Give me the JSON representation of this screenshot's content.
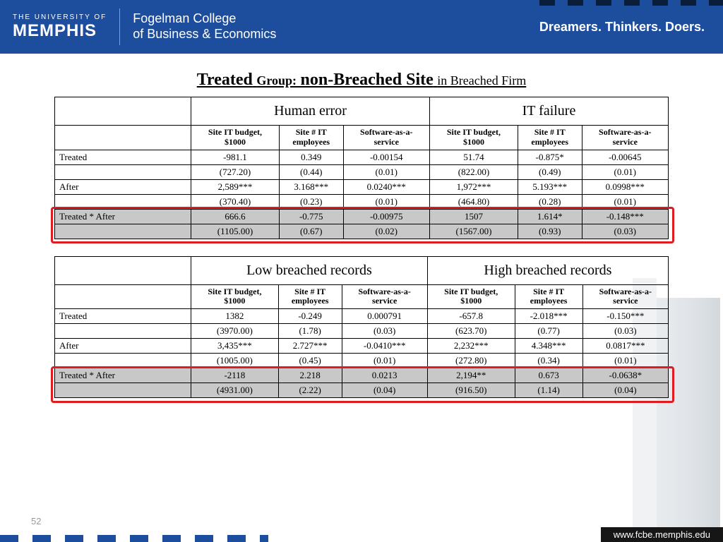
{
  "header": {
    "univ_small": "THE UNIVERSITY OF",
    "univ_big": "MEMPHIS",
    "college_line1": "Fogelman College",
    "college_line2": "of Business & Economics",
    "tagline": "Dreamers. Thinkers. Doers."
  },
  "title": {
    "part1": "Treated",
    "part2": "Group:",
    "part3": "non-Breached Site",
    "part4": "in Breached Firm"
  },
  "table1": {
    "group_a": "Human error",
    "group_b": "IT failure",
    "sub": {
      "c1a": "Site IT budget,",
      "c1b": "$1000",
      "c2a": "Site # IT",
      "c2b": "employees",
      "c3a": "Software-as-a-",
      "c3b": "service"
    },
    "rows": [
      {
        "label": "Treated",
        "a1": "-981.1",
        "a2": "0.349",
        "a3": "-0.00154",
        "b1": "51.74",
        "b2": "-0.875*",
        "b3": "-0.00645"
      },
      {
        "label": "",
        "a1": "(727.20)",
        "a2": "(0.44)",
        "a3": "(0.01)",
        "b1": "(822.00)",
        "b2": "(0.49)",
        "b3": "(0.01)"
      },
      {
        "label": "After",
        "a1": "2,589***",
        "a2": "3.168***",
        "a3": "0.0240***",
        "b1": "1,972***",
        "b2": "5.193***",
        "b3": "0.0998***"
      },
      {
        "label": "",
        "a1": "(370.40)",
        "a2": "(0.23)",
        "a3": "(0.01)",
        "b1": "(464.80)",
        "b2": "(0.28)",
        "b3": "(0.01)"
      },
      {
        "label": "Treated * After",
        "a1": "666.6",
        "a2": "-0.775",
        "a3": "-0.00975",
        "b1": "1507",
        "b2": "1.614*",
        "b3": "-0.148***",
        "hl": true
      },
      {
        "label": "",
        "a1": "(1105.00)",
        "a2": "(0.67)",
        "a3": "(0.02)",
        "b1": "(1567.00)",
        "b2": "(0.93)",
        "b3": "(0.03)",
        "hl": true
      }
    ]
  },
  "table2": {
    "group_a": "Low breached records",
    "group_b": "High breached records",
    "rows": [
      {
        "label": "Treated",
        "a1": "1382",
        "a2": "-0.249",
        "a3": "0.000791",
        "b1": "-657.8",
        "b2": "-2.018***",
        "b3": "-0.150***"
      },
      {
        "label": "",
        "a1": "(3970.00)",
        "a2": "(1.78)",
        "a3": "(0.03)",
        "b1": "(623.70)",
        "b2": "(0.77)",
        "b3": "(0.03)"
      },
      {
        "label": "After",
        "a1": "3,435***",
        "a2": "2.727***",
        "a3": "-0.0410***",
        "b1": "2,232***",
        "b2": "4.348***",
        "b3": "0.0817***"
      },
      {
        "label": "",
        "a1": "(1005.00)",
        "a2": "(0.45)",
        "a3": "(0.01)",
        "b1": "(272.80)",
        "b2": "(0.34)",
        "b3": "(0.01)"
      },
      {
        "label": "Treated * After",
        "a1": "-2118",
        "a2": "2.218",
        "a3": "0.0213",
        "b1": "2,194**",
        "b2": "0.673",
        "b3": "-0.0638*",
        "hl": true
      },
      {
        "label": "",
        "a1": "(4931.00)",
        "a2": "(2.22)",
        "a3": "(0.04)",
        "b1": "(916.50)",
        "b2": "(1.14)",
        "b3": "(0.04)",
        "hl": true
      }
    ]
  },
  "page_number": "52",
  "footer_url": "www.fcbe.memphis.edu",
  "colors": {
    "header_bg": "#1d4e9e",
    "highlight_row": "#c8c8c8",
    "red_box": "#e11b22"
  }
}
